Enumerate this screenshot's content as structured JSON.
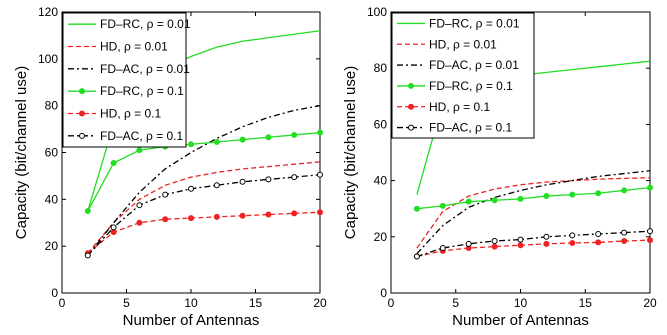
{
  "chart_data": [
    {
      "type": "line",
      "title": "",
      "xlabel": "Number of Antennas",
      "ylabel": "Capacity (bit/channel use)",
      "xlim": [
        0,
        20
      ],
      "ylim": [
        0,
        120
      ],
      "xticks": [
        0,
        5,
        10,
        15,
        20
      ],
      "yticks": [
        0,
        20,
        40,
        60,
        80,
        100,
        120
      ],
      "grid": false,
      "legend_position": "top-left",
      "series": [
        {
          "name": "FD–RC, ρ = 0.01",
          "color": "#22dd22",
          "dash": "solid",
          "marker": "none",
          "x": [
            2,
            4,
            6,
            8,
            10,
            12,
            14,
            16,
            18,
            20
          ],
          "y": [
            35,
            72,
            89,
            96,
            101,
            105,
            107.5,
            109,
            110.5,
            112
          ]
        },
        {
          "name": "HD, ρ = 0.01",
          "color": "#ee2222",
          "dash": "dashed",
          "marker": "none",
          "x": [
            2,
            4,
            6,
            8,
            10,
            12,
            14,
            16,
            18,
            20
          ],
          "y": [
            17,
            30,
            40,
            46,
            49.5,
            51.5,
            53,
            54,
            55,
            56
          ]
        },
        {
          "name": "FD–AC, ρ = 0.01",
          "color": "#000000",
          "dash": "dashdot",
          "marker": "none",
          "x": [
            2,
            4,
            6,
            8,
            10,
            12,
            14,
            16,
            18,
            20
          ],
          "y": [
            16,
            30,
            43,
            53,
            60,
            66,
            71,
            75,
            78,
            80
          ]
        },
        {
          "name": "FD–RC, ρ = 0.1",
          "color": "#22dd22",
          "dash": "solid",
          "marker": "circle",
          "x": [
            2,
            4,
            6,
            8,
            10,
            12,
            14,
            16,
            18,
            20
          ],
          "y": [
            35,
            55.5,
            61,
            62.5,
            63.5,
            64.5,
            65.5,
            66.5,
            67.5,
            68.5
          ]
        },
        {
          "name": "HD, ρ = 0.1",
          "color": "#ee2222",
          "dash": "dashed",
          "marker": "circle",
          "x": [
            2,
            4,
            6,
            8,
            10,
            12,
            14,
            16,
            18,
            20
          ],
          "y": [
            17,
            26,
            30,
            31.5,
            32,
            32.5,
            33,
            33.5,
            34,
            34.5
          ]
        },
        {
          "name": "FD–AC, ρ = 0.1",
          "color": "#000000",
          "dash": "dashdot",
          "marker": "circle",
          "x": [
            2,
            4,
            6,
            8,
            10,
            12,
            14,
            16,
            18,
            20
          ],
          "y": [
            16,
            28,
            37.5,
            42,
            44.5,
            46,
            47.5,
            48.5,
            49.5,
            50.5
          ]
        }
      ]
    },
    {
      "type": "line",
      "title": "",
      "xlabel": "Number of Antennas",
      "ylabel": "Capacity (bit/channel use)",
      "xlim": [
        0,
        20
      ],
      "ylim": [
        0,
        100
      ],
      "xticks": [
        0,
        5,
        10,
        15,
        20
      ],
      "yticks": [
        0,
        20,
        40,
        60,
        80,
        100
      ],
      "grid": false,
      "legend_position": "top-left",
      "series": [
        {
          "name": "FD–RC, ρ = 0.01",
          "color": "#22dd22",
          "dash": "solid",
          "marker": "none",
          "x": [
            2,
            4,
            6,
            8,
            10,
            12,
            14,
            16,
            18,
            20
          ],
          "y": [
            35,
            68,
            74,
            76,
            77.5,
            78.5,
            79.5,
            80.5,
            81.5,
            82.5
          ]
        },
        {
          "name": "HD, ρ = 0.01",
          "color": "#ee2222",
          "dash": "dashed",
          "marker": "none",
          "x": [
            2,
            4,
            6,
            8,
            10,
            12,
            14,
            16,
            18,
            20
          ],
          "y": [
            16,
            29,
            34.5,
            37,
            38.5,
            39.5,
            40,
            40.5,
            40.8,
            41
          ]
        },
        {
          "name": "FD–AC, ρ = 0.01",
          "color": "#000000",
          "dash": "dashdot",
          "marker": "none",
          "x": [
            2,
            4,
            6,
            8,
            10,
            12,
            14,
            16,
            18,
            20
          ],
          "y": [
            14,
            24,
            30.5,
            34,
            36.5,
            38.5,
            40,
            41.5,
            42.5,
            43.5
          ]
        },
        {
          "name": "FD–RC, ρ = 0.1",
          "color": "#22dd22",
          "dash": "solid",
          "marker": "circle",
          "x": [
            2,
            4,
            6,
            8,
            10,
            12,
            14,
            16,
            18,
            20
          ],
          "y": [
            30,
            31,
            32.5,
            33,
            33.5,
            34.5,
            35,
            35.5,
            36.5,
            37.5
          ]
        },
        {
          "name": "HD, ρ = 0.1",
          "color": "#ee2222",
          "dash": "dashed",
          "marker": "circle",
          "x": [
            2,
            4,
            6,
            8,
            10,
            12,
            14,
            16,
            18,
            20
          ],
          "y": [
            13,
            15,
            16,
            16.5,
            17,
            17.5,
            17.8,
            18,
            18.5,
            18.8
          ]
        },
        {
          "name": "FD–AC, ρ = 0.1",
          "color": "#000000",
          "dash": "dashdot",
          "marker": "circle",
          "x": [
            2,
            4,
            6,
            8,
            10,
            12,
            14,
            16,
            18,
            20
          ],
          "y": [
            13,
            16,
            17.5,
            18.5,
            19,
            20,
            20.5,
            21,
            21.5,
            22
          ]
        }
      ]
    }
  ]
}
